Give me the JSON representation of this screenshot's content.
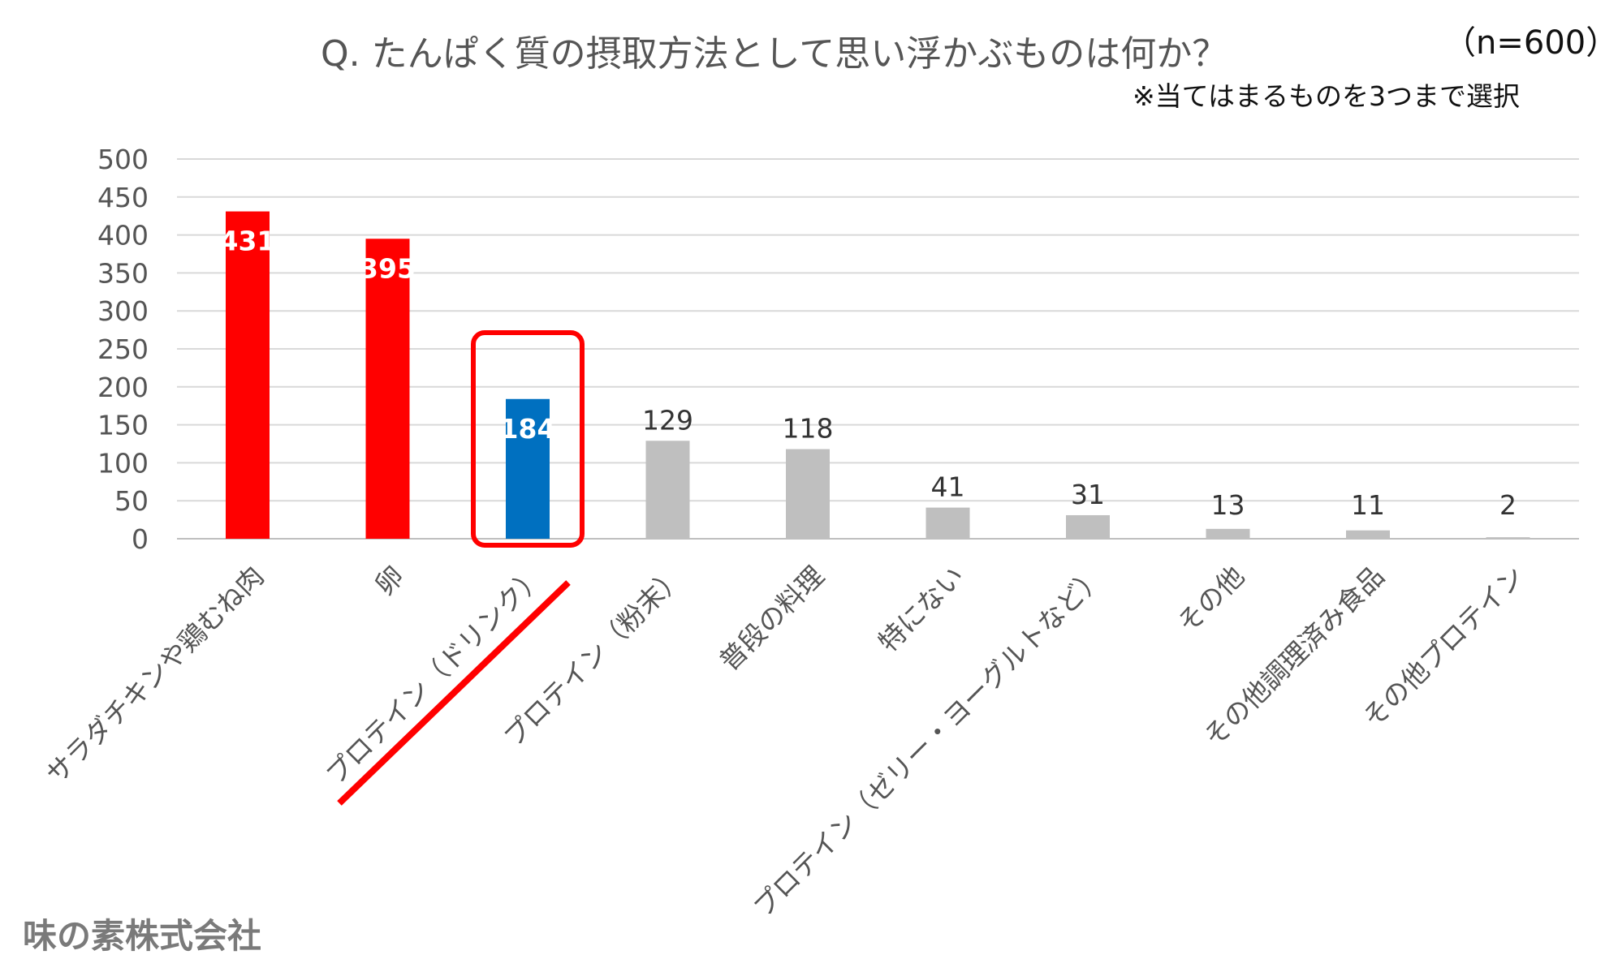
{
  "header": {
    "title": "Q. たんぱく質の摂取方法として思い浮かぶものは何か？",
    "sample": "（n=600）",
    "note": "※当てはまるものを3つまで選択"
  },
  "footer": {
    "company": "味の素株式会社"
  },
  "chart_data": {
    "type": "bar",
    "title": "Q. たんぱく質の摂取方法として思い浮かぶものは何か？",
    "xlabel": "",
    "ylabel": "",
    "ylim": [
      0,
      500
    ],
    "yticks": [
      0,
      50,
      100,
      150,
      200,
      250,
      300,
      350,
      400,
      450,
      500
    ],
    "grid": true,
    "legend": "none",
    "categories": [
      "サラダチキンや鶏むね肉",
      "卵",
      "プロテイン（ドリンク）",
      "プロテイン（粉末）",
      "普段の料理",
      "特にない",
      "プロテイン（ゼリー・ヨーグルトなど）",
      "その他",
      "その他調理済み食品",
      "その他プロテイン"
    ],
    "values": [
      431,
      395,
      184,
      129,
      118,
      41,
      31,
      13,
      11,
      2
    ],
    "bar_colors": [
      "#ff0000",
      "#ff0000",
      "#0070c0",
      "#bfbfbf",
      "#bfbfbf",
      "#bfbfbf",
      "#bfbfbf",
      "#bfbfbf",
      "#bfbfbf",
      "#bfbfbf"
    ],
    "label_colors": [
      "#ffffff",
      "#ffffff",
      "#ffffff",
      "#333333",
      "#333333",
      "#333333",
      "#333333",
      "#333333",
      "#333333",
      "#333333"
    ],
    "highlight_index": 2,
    "highlight_color": "#ff0000"
  }
}
